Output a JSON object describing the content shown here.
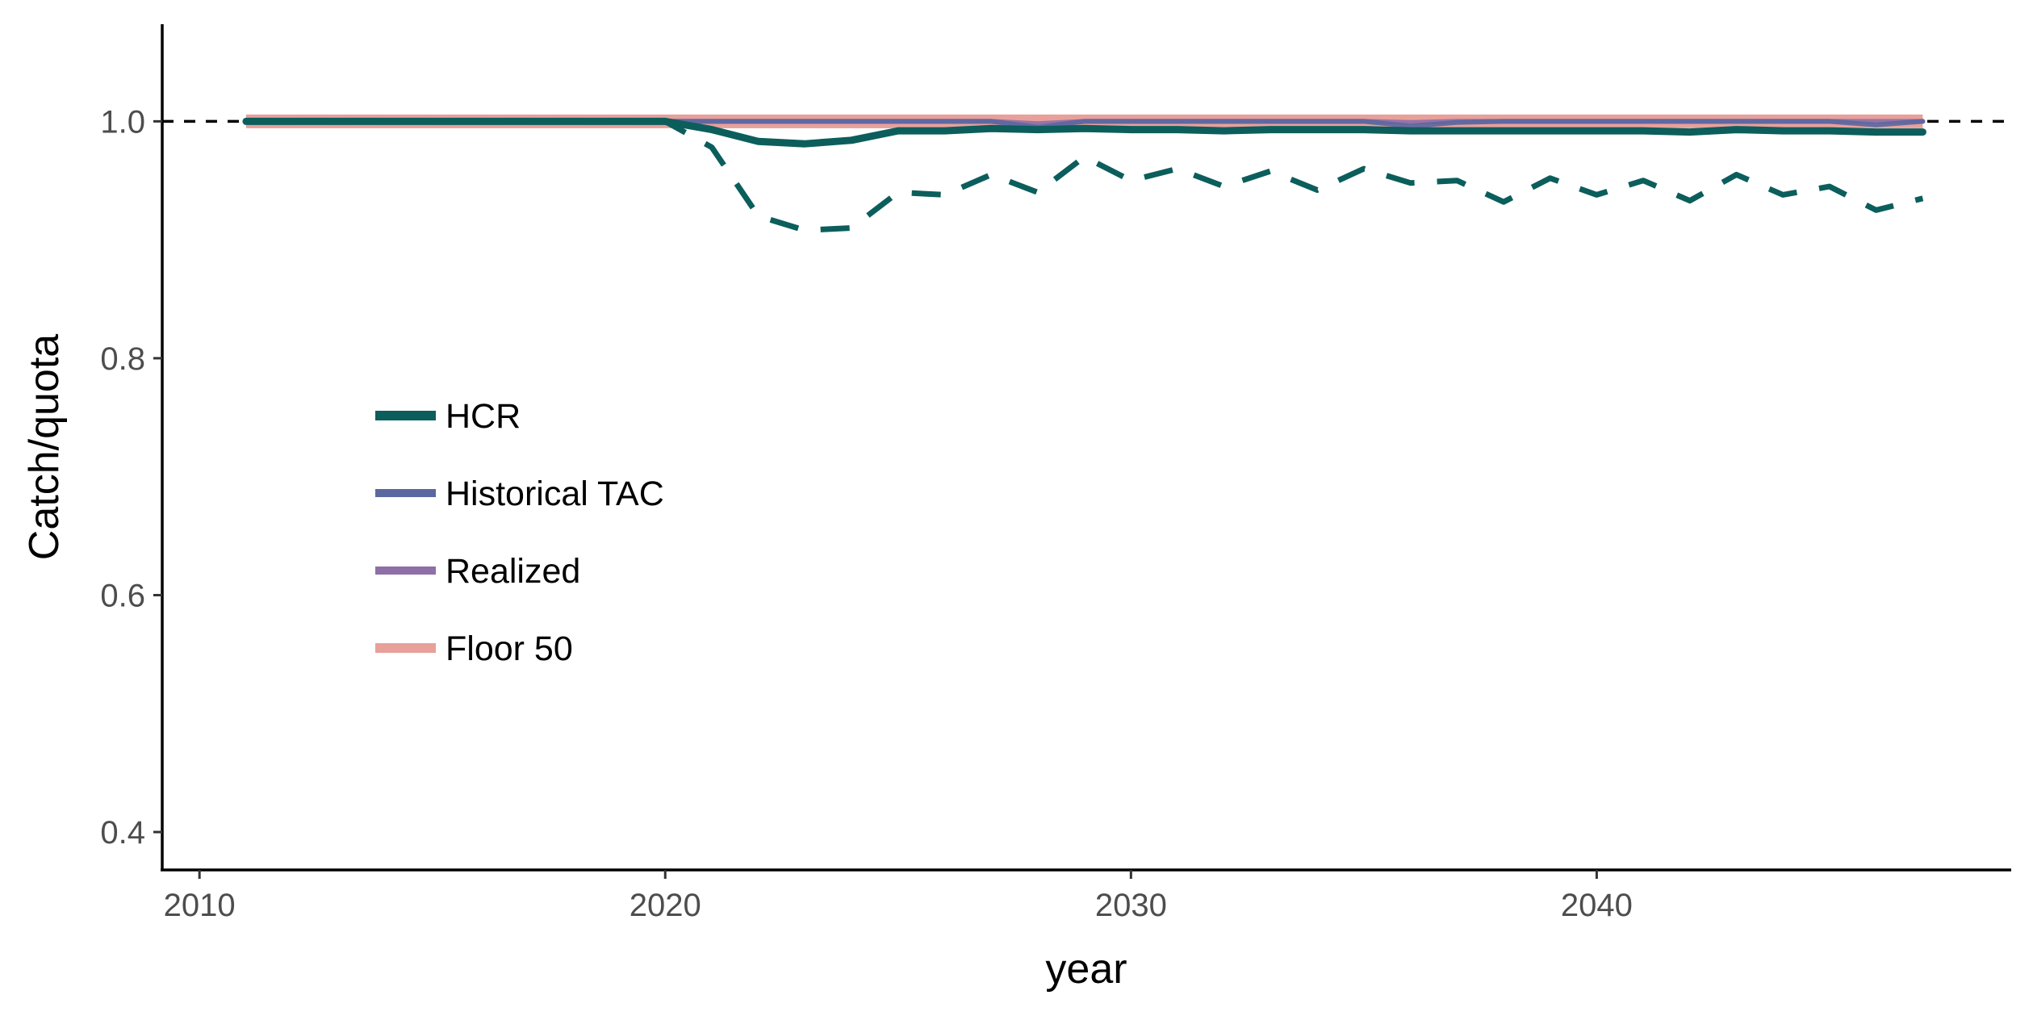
{
  "chart_data": {
    "type": "line",
    "title": "",
    "xlabel": "year",
    "ylabel": "Catch/quota",
    "xlim": [
      2009.2,
      2048.9
    ],
    "ylim": [
      0.368,
      1.082
    ],
    "x_ticks": [
      2010,
      2020,
      2030,
      2040
    ],
    "y_ticks": [
      0.4,
      0.6,
      0.8,
      1.0
    ],
    "x_tick_labels": [
      "2010",
      "2020",
      "2030",
      "2040"
    ],
    "y_tick_labels": [
      "0.4",
      "0.6",
      "0.8",
      "1.0"
    ],
    "grid": false,
    "legend_position": "left-middle inside",
    "reference_line": {
      "y": 1.0,
      "style": "dashed",
      "color": "#000000"
    },
    "x": [
      2011,
      2012,
      2013,
      2014,
      2015,
      2016,
      2017,
      2018,
      2019,
      2020,
      2021,
      2022,
      2023,
      2024,
      2025,
      2026,
      2027,
      2028,
      2029,
      2030,
      2031,
      2032,
      2033,
      2034,
      2035,
      2036,
      2037,
      2038,
      2039,
      2040,
      2041,
      2042,
      2043,
      2044,
      2045,
      2046,
      2047
    ],
    "series": [
      {
        "name": "Floor 50",
        "color": "#E8A09A",
        "values": [
          1.0,
          1.0,
          1.0,
          1.0,
          1.0,
          1.0,
          1.0,
          1.0,
          1.0,
          1.0,
          1.0,
          1.0,
          1.0,
          1.0,
          1.0,
          1.0,
          1.0,
          1.0,
          1.0,
          1.0,
          1.0,
          1.0,
          1.0,
          1.0,
          1.0,
          1.0,
          1.0,
          1.0,
          1.0,
          1.0,
          1.0,
          1.0,
          1.0,
          1.0,
          1.0,
          1.0,
          1.0
        ]
      },
      {
        "name": "Realized",
        "color": "#8E6FA8",
        "values": [
          1.0,
          1.0,
          1.0,
          1.0,
          1.0,
          1.0,
          1.0,
          1.0,
          1.0,
          1.0,
          1.0,
          1.0,
          1.0,
          1.0,
          1.0,
          1.0,
          1.0,
          0.998,
          1.0,
          1.0,
          1.0,
          1.0,
          1.0,
          1.0,
          1.0,
          0.999,
          1.0,
          1.0,
          1.0,
          1.0,
          1.0,
          1.0,
          1.0,
          1.0,
          1.0,
          1.0,
          1.0
        ]
      },
      {
        "name": "Historical TAC",
        "color": "#5B67A0",
        "values": [
          1.0,
          1.0,
          1.0,
          1.0,
          1.0,
          1.0,
          1.0,
          1.0,
          1.0,
          1.0,
          1.0,
          1.0,
          1.0,
          1.0,
          1.0,
          1.0,
          1.0,
          0.995,
          1.0,
          1.0,
          1.0,
          1.0,
          1.0,
          1.0,
          1.0,
          0.996,
          0.999,
          1.0,
          1.0,
          1.0,
          1.0,
          1.0,
          1.0,
          1.0,
          1.0,
          0.997,
          1.0
        ]
      },
      {
        "name": "HCR",
        "color": "#0B5E5B",
        "values": [
          1.0,
          1.0,
          1.0,
          1.0,
          1.0,
          1.0,
          1.0,
          1.0,
          1.0,
          1.0,
          0.993,
          0.983,
          0.981,
          0.984,
          0.992,
          0.992,
          0.994,
          0.993,
          0.994,
          0.993,
          0.993,
          0.992,
          0.993,
          0.993,
          0.993,
          0.992,
          0.992,
          0.992,
          0.992,
          0.992,
          0.992,
          0.991,
          0.993,
          0.992,
          0.992,
          0.991,
          0.991
        ]
      },
      {
        "name": "",
        "color": "#0B5E5B",
        "style": "dashed",
        "values": [
          1.0,
          1.0,
          1.0,
          1.0,
          1.0,
          1.0,
          1.0,
          1.0,
          1.0,
          1.0,
          0.978,
          0.92,
          0.908,
          0.91,
          0.94,
          0.938,
          0.955,
          0.94,
          0.97,
          0.95,
          0.96,
          0.945,
          0.958,
          0.942,
          0.96,
          0.948,
          0.95,
          0.932,
          0.952,
          0.938,
          0.95,
          0.933,
          0.955,
          0.938,
          0.945,
          0.925,
          0.935
        ]
      }
    ]
  }
}
